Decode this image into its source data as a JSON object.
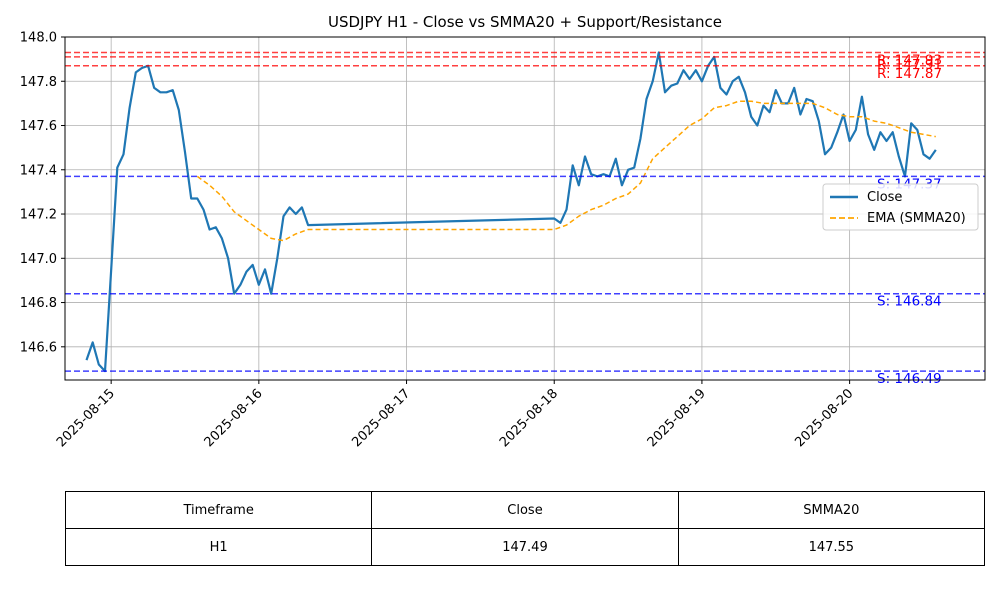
{
  "chart_data": {
    "type": "line",
    "title": "USDJPY H1 - Close vs SMMA20 + Support/Resistance",
    "xlabel": "",
    "ylabel": "",
    "x_ticks": [
      "2025-08-15",
      "2025-08-16",
      "2025-08-17",
      "2025-08-18",
      "2025-08-19",
      "2025-08-20"
    ],
    "xlim": [
      "2025-08-14T16:30",
      "2025-08-20T22:00"
    ],
    "y_ticks": [
      "146.6",
      "146.8",
      "147.0",
      "147.2",
      "147.4",
      "147.6",
      "147.8",
      "148.0"
    ],
    "ylim": [
      146.45,
      148.0
    ],
    "grid": true,
    "legend_position": "center-right",
    "series": [
      {
        "name": "Close",
        "style": "solid",
        "color": "#1f77b4",
        "points": [
          [
            "2025-08-14T20:00",
            146.54
          ],
          [
            "2025-08-14T21:00",
            146.62
          ],
          [
            "2025-08-14T22:00",
            146.52
          ],
          [
            "2025-08-14T23:00",
            146.49
          ],
          [
            "2025-08-15T00:00",
            146.95
          ],
          [
            "2025-08-15T01:00",
            147.41
          ],
          [
            "2025-08-15T02:00",
            147.47
          ],
          [
            "2025-08-15T03:00",
            147.68
          ],
          [
            "2025-08-15T04:00",
            147.84
          ],
          [
            "2025-08-15T05:00",
            147.86
          ],
          [
            "2025-08-15T06:00",
            147.87
          ],
          [
            "2025-08-15T07:00",
            147.77
          ],
          [
            "2025-08-15T08:00",
            147.75
          ],
          [
            "2025-08-15T09:00",
            147.75
          ],
          [
            "2025-08-15T10:00",
            147.76
          ],
          [
            "2025-08-15T11:00",
            147.67
          ],
          [
            "2025-08-15T12:00",
            147.48
          ],
          [
            "2025-08-15T13:00",
            147.27
          ],
          [
            "2025-08-15T14:00",
            147.27
          ],
          [
            "2025-08-15T15:00",
            147.22
          ],
          [
            "2025-08-15T16:00",
            147.13
          ],
          [
            "2025-08-15T17:00",
            147.14
          ],
          [
            "2025-08-15T18:00",
            147.09
          ],
          [
            "2025-08-15T19:00",
            147.0
          ],
          [
            "2025-08-15T20:00",
            146.84
          ],
          [
            "2025-08-15T21:00",
            146.88
          ],
          [
            "2025-08-15T22:00",
            146.94
          ],
          [
            "2025-08-15T23:00",
            146.97
          ],
          [
            "2025-08-16T00:00",
            146.88
          ],
          [
            "2025-08-16T01:00",
            146.95
          ],
          [
            "2025-08-16T02:00",
            146.84
          ],
          [
            "2025-08-16T03:00",
            147.0
          ],
          [
            "2025-08-16T04:00",
            147.19
          ],
          [
            "2025-08-16T05:00",
            147.23
          ],
          [
            "2025-08-16T06:00",
            147.2
          ],
          [
            "2025-08-16T07:00",
            147.23
          ],
          [
            "2025-08-16T08:00",
            147.15
          ],
          [
            "2025-08-18T00:00",
            147.18
          ],
          [
            "2025-08-18T01:00",
            147.16
          ],
          [
            "2025-08-18T02:00",
            147.22
          ],
          [
            "2025-08-18T03:00",
            147.42
          ],
          [
            "2025-08-18T04:00",
            147.33
          ],
          [
            "2025-08-18T05:00",
            147.46
          ],
          [
            "2025-08-18T06:00",
            147.38
          ],
          [
            "2025-08-18T07:00",
            147.37
          ],
          [
            "2025-08-18T08:00",
            147.38
          ],
          [
            "2025-08-18T09:00",
            147.37
          ],
          [
            "2025-08-18T10:00",
            147.45
          ],
          [
            "2025-08-18T11:00",
            147.33
          ],
          [
            "2025-08-18T12:00",
            147.4
          ],
          [
            "2025-08-18T13:00",
            147.41
          ],
          [
            "2025-08-18T14:00",
            147.54
          ],
          [
            "2025-08-18T15:00",
            147.72
          ],
          [
            "2025-08-18T16:00",
            147.8
          ],
          [
            "2025-08-18T17:00",
            147.93
          ],
          [
            "2025-08-18T18:00",
            147.75
          ],
          [
            "2025-08-18T19:00",
            147.78
          ],
          [
            "2025-08-18T20:00",
            147.79
          ],
          [
            "2025-08-18T21:00",
            147.85
          ],
          [
            "2025-08-18T22:00",
            147.81
          ],
          [
            "2025-08-18T23:00",
            147.85
          ],
          [
            "2025-08-19T00:00",
            147.8
          ],
          [
            "2025-08-19T01:00",
            147.87
          ],
          [
            "2025-08-19T02:00",
            147.91
          ],
          [
            "2025-08-19T03:00",
            147.77
          ],
          [
            "2025-08-19T04:00",
            147.74
          ],
          [
            "2025-08-19T05:00",
            147.8
          ],
          [
            "2025-08-19T06:00",
            147.82
          ],
          [
            "2025-08-19T07:00",
            147.75
          ],
          [
            "2025-08-19T08:00",
            147.64
          ],
          [
            "2025-08-19T09:00",
            147.6
          ],
          [
            "2025-08-19T10:00",
            147.69
          ],
          [
            "2025-08-19T11:00",
            147.66
          ],
          [
            "2025-08-19T12:00",
            147.76
          ],
          [
            "2025-08-19T13:00",
            147.7
          ],
          [
            "2025-08-19T14:00",
            147.7
          ],
          [
            "2025-08-19T15:00",
            147.77
          ],
          [
            "2025-08-19T16:00",
            147.65
          ],
          [
            "2025-08-19T17:00",
            147.72
          ],
          [
            "2025-08-19T18:00",
            147.71
          ],
          [
            "2025-08-19T19:00",
            147.62
          ],
          [
            "2025-08-19T20:00",
            147.47
          ],
          [
            "2025-08-19T21:00",
            147.5
          ],
          [
            "2025-08-19T22:00",
            147.57
          ],
          [
            "2025-08-19T23:00",
            147.65
          ],
          [
            "2025-08-20T00:00",
            147.53
          ],
          [
            "2025-08-20T01:00",
            147.58
          ],
          [
            "2025-08-20T02:00",
            147.73
          ],
          [
            "2025-08-20T03:00",
            147.56
          ],
          [
            "2025-08-20T04:00",
            147.49
          ],
          [
            "2025-08-20T05:00",
            147.57
          ],
          [
            "2025-08-20T06:00",
            147.53
          ],
          [
            "2025-08-20T07:00",
            147.57
          ],
          [
            "2025-08-20T08:00",
            147.46
          ],
          [
            "2025-08-20T09:00",
            147.37
          ],
          [
            "2025-08-20T10:00",
            147.61
          ],
          [
            "2025-08-20T11:00",
            147.58
          ],
          [
            "2025-08-20T12:00",
            147.47
          ],
          [
            "2025-08-20T13:00",
            147.45
          ],
          [
            "2025-08-20T14:00",
            147.49
          ]
        ]
      },
      {
        "name": "EMA (SMMA20)",
        "style": "dashed",
        "color": "#ffa500",
        "points": [
          [
            "2025-08-15T14:00",
            147.37
          ],
          [
            "2025-08-15T16:00",
            147.33
          ],
          [
            "2025-08-15T18:00",
            147.28
          ],
          [
            "2025-08-15T20:00",
            147.21
          ],
          [
            "2025-08-15T22:00",
            147.17
          ],
          [
            "2025-08-16T00:00",
            147.13
          ],
          [
            "2025-08-16T02:00",
            147.09
          ],
          [
            "2025-08-16T04:00",
            147.08
          ],
          [
            "2025-08-16T06:00",
            147.11
          ],
          [
            "2025-08-16T08:00",
            147.13
          ],
          [
            "2025-08-18T00:00",
            147.13
          ],
          [
            "2025-08-18T02:00",
            147.15
          ],
          [
            "2025-08-18T04:00",
            147.19
          ],
          [
            "2025-08-18T06:00",
            147.22
          ],
          [
            "2025-08-18T08:00",
            147.24
          ],
          [
            "2025-08-18T10:00",
            147.27
          ],
          [
            "2025-08-18T12:00",
            147.29
          ],
          [
            "2025-08-18T14:00",
            147.34
          ],
          [
            "2025-08-18T16:00",
            147.45
          ],
          [
            "2025-08-18T18:00",
            147.5
          ],
          [
            "2025-08-18T20:00",
            147.55
          ],
          [
            "2025-08-18T22:00",
            147.6
          ],
          [
            "2025-08-19T00:00",
            147.63
          ],
          [
            "2025-08-19T02:00",
            147.68
          ],
          [
            "2025-08-19T04:00",
            147.69
          ],
          [
            "2025-08-19T06:00",
            147.71
          ],
          [
            "2025-08-19T08:00",
            147.71
          ],
          [
            "2025-08-19T10:00",
            147.7
          ],
          [
            "2025-08-19T12:00",
            147.7
          ],
          [
            "2025-08-19T14:00",
            147.7
          ],
          [
            "2025-08-19T16:00",
            147.7
          ],
          [
            "2025-08-19T18:00",
            147.7
          ],
          [
            "2025-08-19T20:00",
            147.68
          ],
          [
            "2025-08-19T22:00",
            147.65
          ],
          [
            "2025-08-20T00:00",
            147.64
          ],
          [
            "2025-08-20T02:00",
            147.64
          ],
          [
            "2025-08-20T04:00",
            147.62
          ],
          [
            "2025-08-20T06:00",
            147.61
          ],
          [
            "2025-08-20T08:00",
            147.59
          ],
          [
            "2025-08-20T10:00",
            147.57
          ],
          [
            "2025-08-20T12:00",
            147.56
          ],
          [
            "2025-08-20T14:00",
            147.55
          ]
        ]
      }
    ],
    "support_resistance": [
      {
        "kind": "resistance",
        "value": 147.93,
        "label": "R: 147.93",
        "color": "#ff0000"
      },
      {
        "kind": "resistance",
        "value": 147.91,
        "label": "R: 147.91",
        "color": "#ff0000"
      },
      {
        "kind": "resistance",
        "value": 147.87,
        "label": "R: 147.87",
        "color": "#ff0000"
      },
      {
        "kind": "support",
        "value": 147.37,
        "label": "S: 147.37",
        "color": "#0000ff"
      },
      {
        "kind": "support",
        "value": 146.84,
        "label": "S: 146.84",
        "color": "#0000ff"
      },
      {
        "kind": "support",
        "value": 146.49,
        "label": "S: 146.49",
        "color": "#0000ff"
      }
    ]
  },
  "table": {
    "headers": [
      "Timeframe",
      "Close",
      "SMMA20"
    ],
    "row": [
      "H1",
      "147.49",
      "147.55"
    ]
  }
}
